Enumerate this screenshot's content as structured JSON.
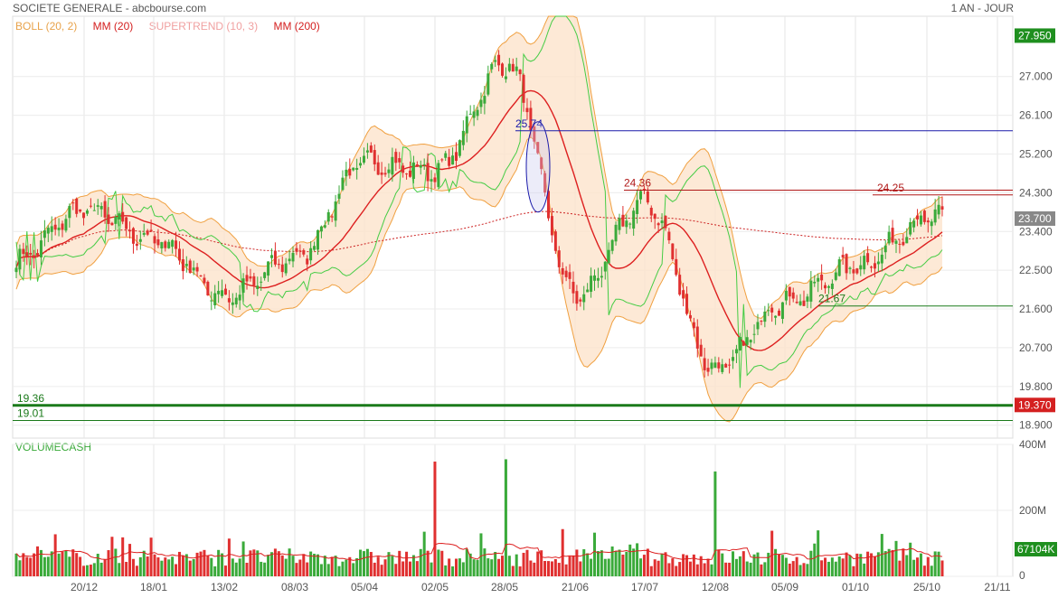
{
  "header": {
    "title": "SOCIETE GENERALE - abcbourse.com",
    "period": "1 AN - JOUR"
  },
  "legend": [
    {
      "label": "BOLL (20, 2)",
      "color": "#e8a24a"
    },
    {
      "label": "MM (20)",
      "color": "#d42020"
    },
    {
      "label": "SUPERTREND (10, 3)",
      "color": "#f0a0a0"
    },
    {
      "label": "MM (200)",
      "color": "#d42020"
    }
  ],
  "volume_panel": {
    "title": "VOLUMECASH"
  },
  "colors": {
    "up": "#3aaa3a",
    "down": "#e03030",
    "bollinger_fill": "#fde4cc",
    "bollinger_line": "#f0a040",
    "ma20": "#dd2020",
    "ma200": "#cc2020",
    "supertrend_up": "#44cc44",
    "supertrend_down": "#f4a0a0",
    "resistance_line": "#1a1aaa",
    "support_line": "#1a7a1a",
    "badge_green": "#1f8f1f",
    "badge_red": "#d42020",
    "badge_gray": "#888888"
  },
  "chart_data": [
    {
      "type": "candlestick",
      "title": "SOCIETE GENERALE",
      "x_tick_labels": [
        "20/12",
        "18/01",
        "13/02",
        "08/03",
        "05/04",
        "02/05",
        "28/05",
        "21/06",
        "17/07",
        "12/08",
        "05/09",
        "01/10",
        "25/10",
        "21/11"
      ],
      "y_tick_labels": [
        "27.000",
        "26.100",
        "25.200",
        "24.300",
        "23.400",
        "22.500",
        "21.600",
        "20.700",
        "19.800",
        "18.900"
      ],
      "ylim": [
        18.6,
        28.4
      ],
      "grid": true,
      "last_price": "23.700",
      "year_high": "27.950",
      "reference_badge": "19.370",
      "annotations": [
        {
          "label": "25.74",
          "value": 25.74
        },
        {
          "label": "24.36",
          "value": 24.36
        },
        {
          "label": "24.25",
          "value": 24.25
        },
        {
          "label": "21.67",
          "value": 21.67
        },
        {
          "label": "19.36",
          "value": 19.36
        },
        {
          "label": "19.01",
          "value": 19.01
        }
      ],
      "close_anchors": [
        {
          "tick": "start",
          "close": 22.7
        },
        {
          "tick": "20/12",
          "close": 23.9
        },
        {
          "tick": "18/01",
          "close": 23.2
        },
        {
          "tick": "13/02",
          "close": 21.9
        },
        {
          "tick": "08/03",
          "close": 22.8
        },
        {
          "tick": "05/04",
          "close": 25.0
        },
        {
          "tick": "02/05",
          "close": 24.8
        },
        {
          "tick": "28/05",
          "close": 27.3
        },
        {
          "tick": "21/06",
          "close": 21.9
        },
        {
          "tick": "17/07",
          "close": 24.1
        },
        {
          "tick": "12/08",
          "close": 20.2
        },
        {
          "tick": "05/09",
          "close": 21.8
        },
        {
          "tick": "01/10",
          "close": 22.6
        },
        {
          "tick": "25/10",
          "close": 23.7
        }
      ]
    },
    {
      "type": "bar",
      "title": "VOLUMECASH",
      "y_tick_labels": [
        "400M",
        "200M",
        "0"
      ],
      "ylim": [
        0,
        400
      ],
      "unit": "M",
      "last_value": "67104K",
      "spikes": [
        {
          "tick": "02/05",
          "value": 348
        },
        {
          "tick": "28/05",
          "value": 355
        },
        {
          "tick": "12/08",
          "value": 318
        }
      ]
    }
  ]
}
